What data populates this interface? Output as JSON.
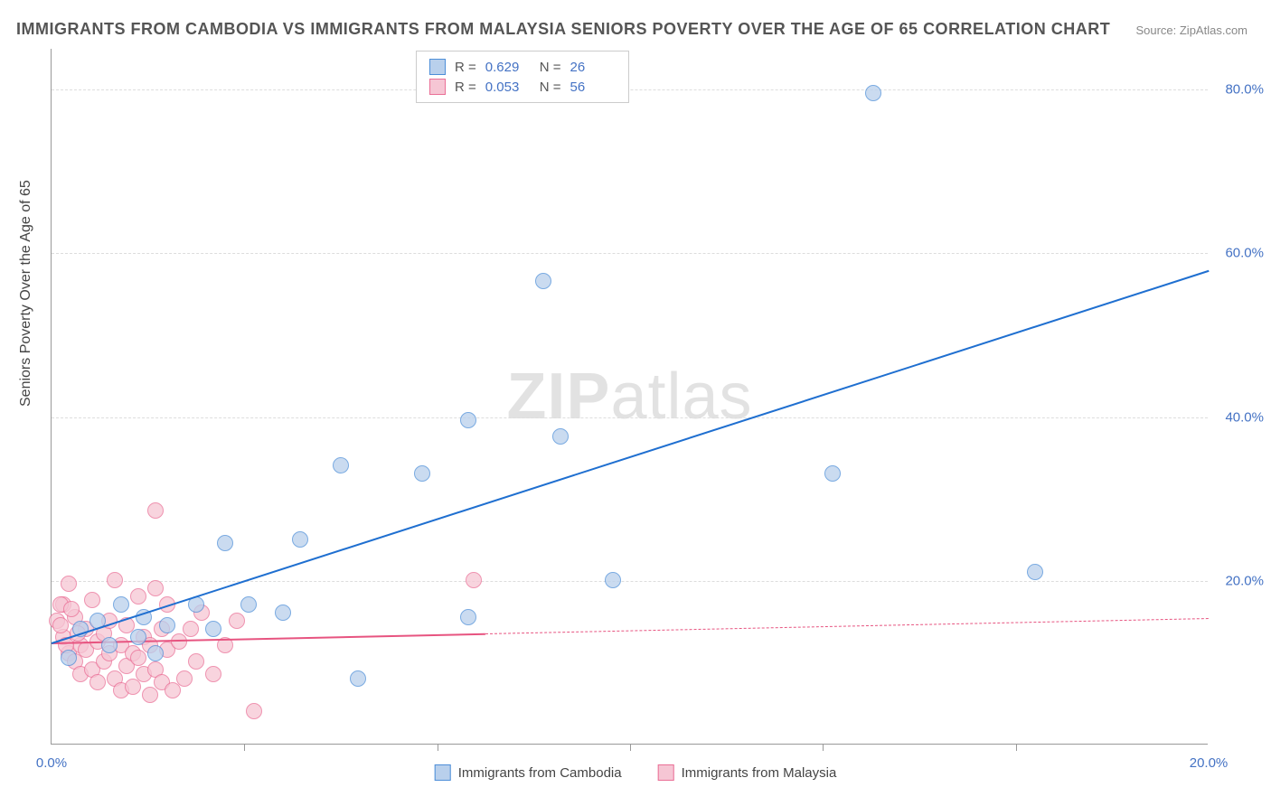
{
  "title": "IMMIGRANTS FROM CAMBODIA VS IMMIGRANTS FROM MALAYSIA SENIORS POVERTY OVER THE AGE OF 65 CORRELATION CHART",
  "source": "Source: ZipAtlas.com",
  "y_axis_label": "Seniors Poverty Over the Age of 65",
  "watermark": {
    "bold": "ZIP",
    "rest": "atlas"
  },
  "series": [
    {
      "name": "Immigrants from Cambodia",
      "fill": "#b9d0ec",
      "stroke": "#4d8ed8",
      "line_color": "#1f6fd0",
      "r": "0.629",
      "n": "26",
      "radius": 9,
      "trend": {
        "x1": 0,
        "y1": 12.5,
        "x2": 20,
        "y2": 58,
        "dash_from_x": null
      },
      "points": [
        {
          "x": 4.3,
          "y": 25.0
        },
        {
          "x": 5.0,
          "y": 34.0
        },
        {
          "x": 7.2,
          "y": 39.5
        },
        {
          "x": 8.5,
          "y": 56.5
        },
        {
          "x": 8.8,
          "y": 37.5
        },
        {
          "x": 6.4,
          "y": 33.0
        },
        {
          "x": 14.2,
          "y": 79.5
        },
        {
          "x": 13.5,
          "y": 33.0
        },
        {
          "x": 17.0,
          "y": 21.0
        },
        {
          "x": 9.7,
          "y": 20.0
        },
        {
          "x": 7.2,
          "y": 15.5
        },
        {
          "x": 3.0,
          "y": 24.5
        },
        {
          "x": 2.5,
          "y": 17.0
        },
        {
          "x": 3.4,
          "y": 17.0
        },
        {
          "x": 4.0,
          "y": 16.0
        },
        {
          "x": 2.0,
          "y": 14.5
        },
        {
          "x": 1.5,
          "y": 13.0
        },
        {
          "x": 1.0,
          "y": 12.0
        },
        {
          "x": 1.8,
          "y": 11.0
        },
        {
          "x": 5.3,
          "y": 8.0
        },
        {
          "x": 0.5,
          "y": 14.0
        },
        {
          "x": 0.3,
          "y": 10.5
        },
        {
          "x": 0.8,
          "y": 15.0
        },
        {
          "x": 1.2,
          "y": 17.0
        },
        {
          "x": 2.8,
          "y": 14.0
        },
        {
          "x": 1.6,
          "y": 15.5
        }
      ]
    },
    {
      "name": "Immigrants from Malaysia",
      "fill": "#f6c6d4",
      "stroke": "#ea6f96",
      "line_color": "#e75480",
      "r": "0.053",
      "n": "56",
      "radius": 9,
      "trend": {
        "x1": 0,
        "y1": 12.5,
        "x2": 20,
        "y2": 15.5,
        "dash_from_x": 7.5
      },
      "points": [
        {
          "x": 0.1,
          "y": 15.0
        },
        {
          "x": 0.2,
          "y": 17.0
        },
        {
          "x": 0.2,
          "y": 13.0
        },
        {
          "x": 0.3,
          "y": 11.0
        },
        {
          "x": 0.3,
          "y": 19.5
        },
        {
          "x": 0.4,
          "y": 15.5
        },
        {
          "x": 0.4,
          "y": 10.0
        },
        {
          "x": 0.5,
          "y": 12.0
        },
        {
          "x": 0.5,
          "y": 8.5
        },
        {
          "x": 0.6,
          "y": 14.0
        },
        {
          "x": 0.6,
          "y": 11.5
        },
        {
          "x": 0.7,
          "y": 17.5
        },
        {
          "x": 0.7,
          "y": 9.0
        },
        {
          "x": 0.8,
          "y": 12.5
        },
        {
          "x": 0.8,
          "y": 7.5
        },
        {
          "x": 0.9,
          "y": 13.5
        },
        {
          "x": 0.9,
          "y": 10.0
        },
        {
          "x": 1.0,
          "y": 15.0
        },
        {
          "x": 1.0,
          "y": 11.0
        },
        {
          "x": 1.1,
          "y": 8.0
        },
        {
          "x": 1.1,
          "y": 20.0
        },
        {
          "x": 1.2,
          "y": 12.0
        },
        {
          "x": 1.2,
          "y": 6.5
        },
        {
          "x": 1.3,
          "y": 14.5
        },
        {
          "x": 1.3,
          "y": 9.5
        },
        {
          "x": 1.4,
          "y": 11.0
        },
        {
          "x": 1.4,
          "y": 7.0
        },
        {
          "x": 1.5,
          "y": 18.0
        },
        {
          "x": 1.5,
          "y": 10.5
        },
        {
          "x": 1.6,
          "y": 13.0
        },
        {
          "x": 1.6,
          "y": 8.5
        },
        {
          "x": 1.7,
          "y": 6.0
        },
        {
          "x": 1.7,
          "y": 12.0
        },
        {
          "x": 1.8,
          "y": 19.0
        },
        {
          "x": 1.8,
          "y": 9.0
        },
        {
          "x": 1.9,
          "y": 14.0
        },
        {
          "x": 1.9,
          "y": 7.5
        },
        {
          "x": 2.0,
          "y": 11.5
        },
        {
          "x": 2.0,
          "y": 17.0
        },
        {
          "x": 2.1,
          "y": 6.5
        },
        {
          "x": 2.2,
          "y": 12.5
        },
        {
          "x": 2.3,
          "y": 8.0
        },
        {
          "x": 2.4,
          "y": 14.0
        },
        {
          "x": 2.5,
          "y": 10.0
        },
        {
          "x": 2.6,
          "y": 16.0
        },
        {
          "x": 2.8,
          "y": 8.5
        },
        {
          "x": 3.0,
          "y": 12.0
        },
        {
          "x": 3.2,
          "y": 15.0
        },
        {
          "x": 3.5,
          "y": 4.0
        },
        {
          "x": 1.8,
          "y": 28.5
        },
        {
          "x": 0.15,
          "y": 17.0
        },
        {
          "x": 0.15,
          "y": 14.5
        },
        {
          "x": 0.25,
          "y": 12.0
        },
        {
          "x": 7.3,
          "y": 20.0
        },
        {
          "x": 0.35,
          "y": 16.5
        },
        {
          "x": 0.45,
          "y": 13.5
        }
      ]
    }
  ],
  "chart": {
    "xlim": [
      0,
      20
    ],
    "ylim": [
      0,
      85
    ],
    "x_ticks": [
      0,
      20
    ],
    "x_tick_labels": [
      "0.0%",
      "20.0%"
    ],
    "x_minor_ticks": [
      3.33,
      6.67,
      10,
      13.33,
      16.67
    ],
    "y_grid": [
      20,
      40,
      60,
      80
    ],
    "y_tick_labels": [
      "20.0%",
      "40.0%",
      "60.0%",
      "80.0%"
    ],
    "grid_color": "#dddddd",
    "background_color": "#ffffff",
    "axis_label_color": "#4472c4"
  }
}
